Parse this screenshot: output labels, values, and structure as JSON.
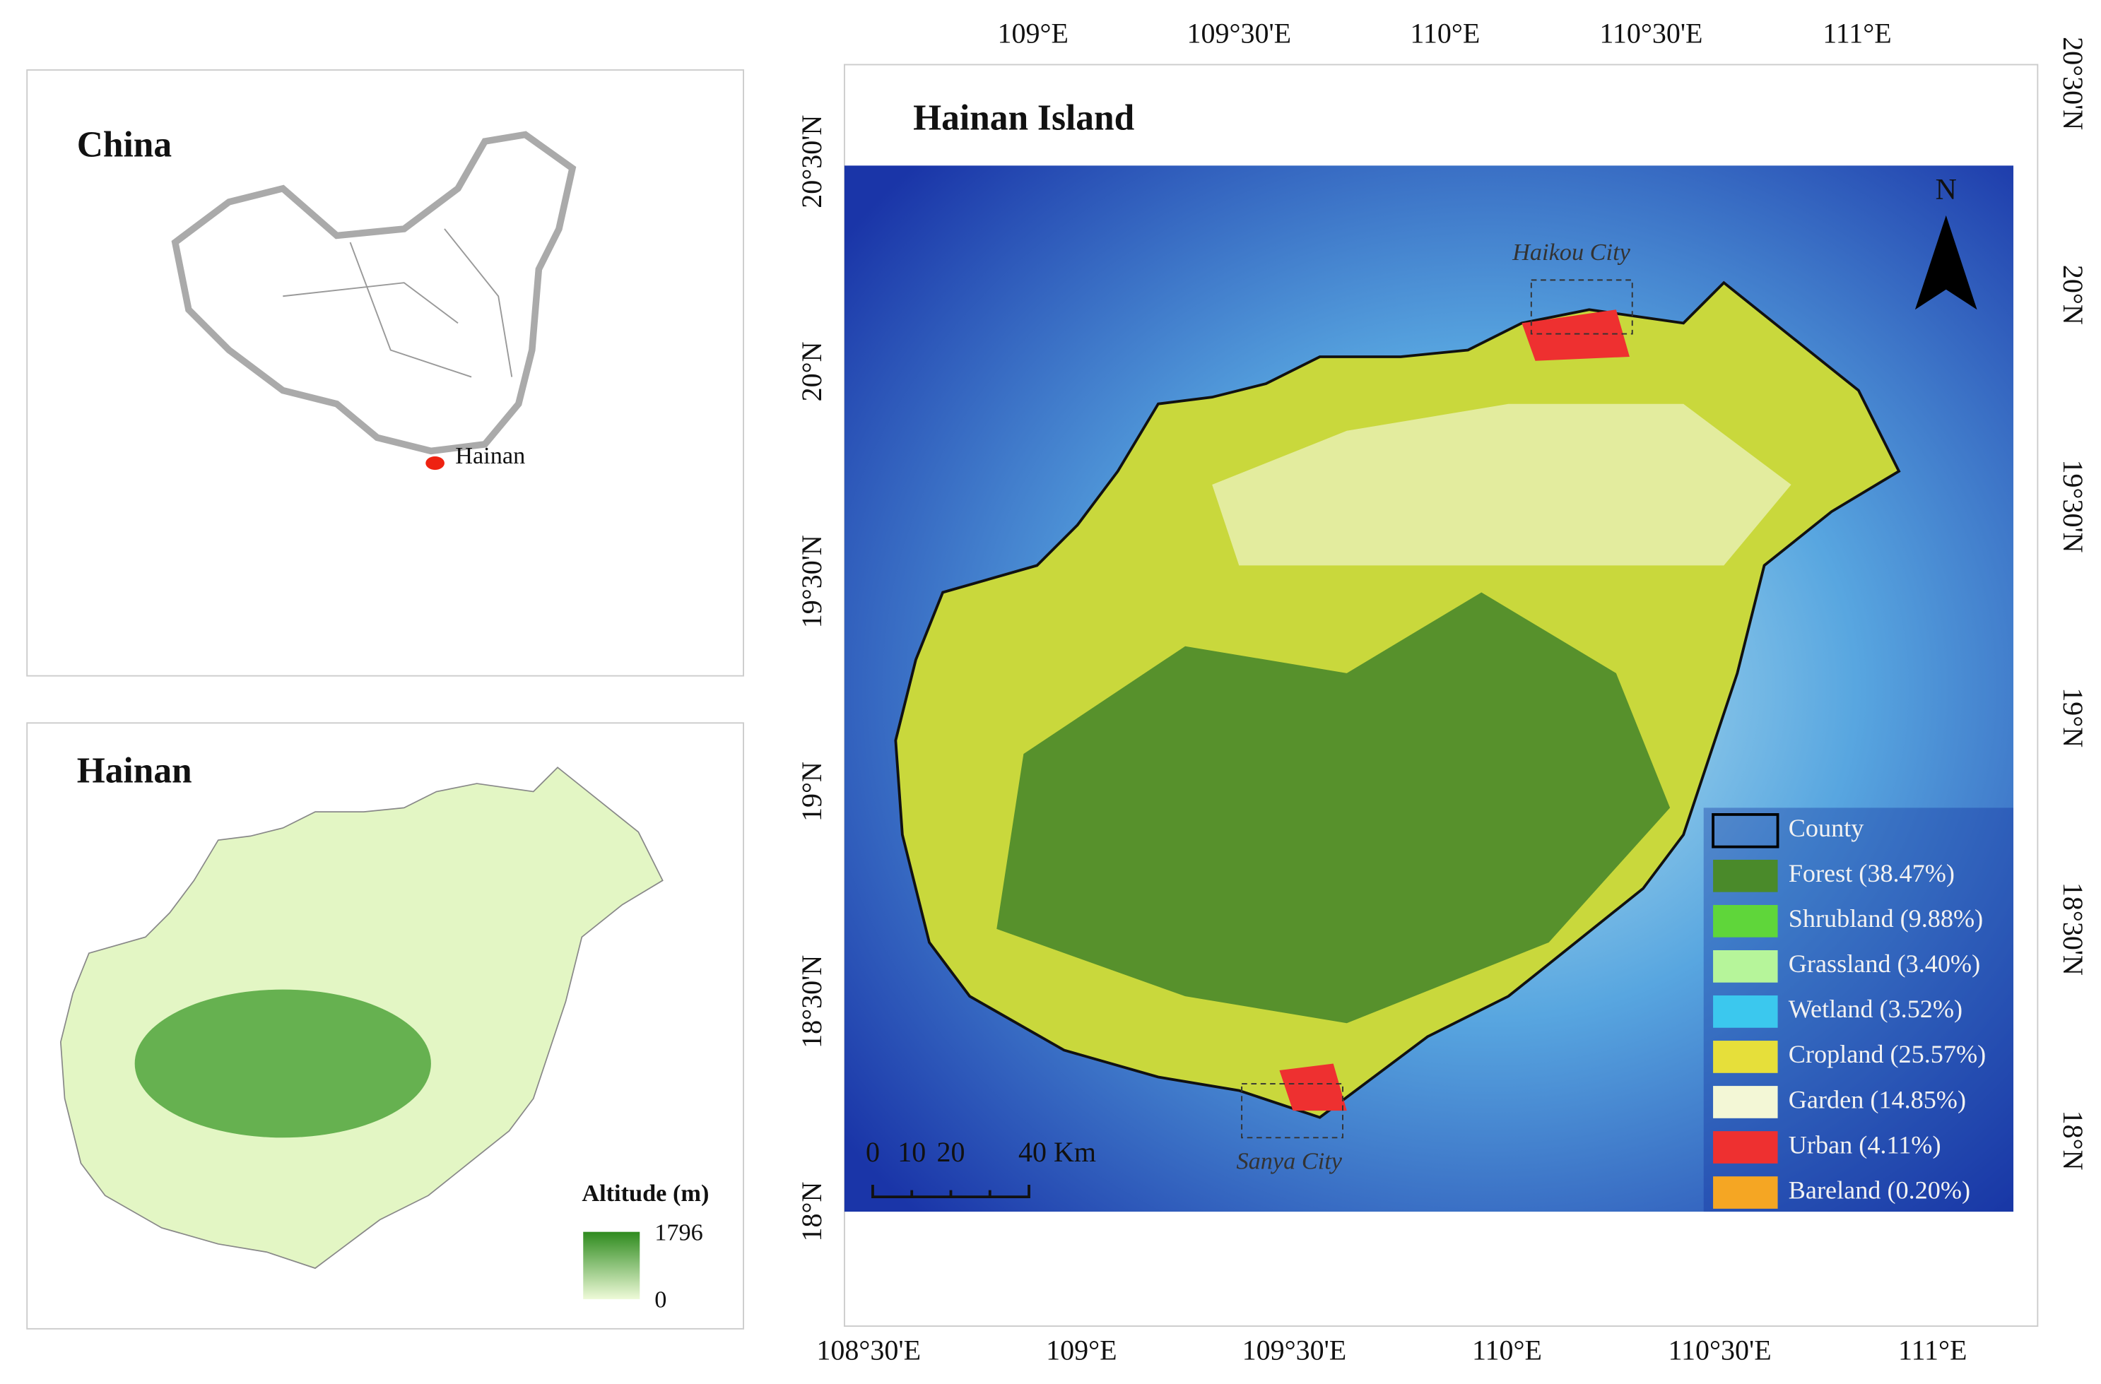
{
  "china_panel": {
    "title": "China",
    "label": "Hainan"
  },
  "altitude_panel": {
    "title": "Hainan",
    "legend_title": "Altitude (m)",
    "max_label": "1796",
    "min_label": "0"
  },
  "main_map": {
    "title": "Hainan Island",
    "north": "N",
    "top_labels": [
      "109°E",
      "109°30'E",
      "110°E",
      "110°30'E",
      "111°E"
    ],
    "bottom_labels": [
      "108°30'E",
      "109°E",
      "109°30'E",
      "110°E",
      "110°30'E",
      "111°E"
    ],
    "left_labels": [
      "20°30'N",
      "20°N",
      "19°30'N",
      "19°N",
      "18°30'N",
      "18°N"
    ],
    "right_labels": [
      "20°30'N",
      "20°N",
      "19°30'N",
      "19°N",
      "18°30'N",
      "18°N"
    ],
    "cities": [
      "Haikou City",
      "Sanya City"
    ],
    "scale_labels": [
      "0",
      "10",
      "20",
      "40 Km"
    ],
    "legend": [
      {
        "label": "County",
        "color": "none"
      },
      {
        "label": "Forest (38.47%)",
        "color": "#4a8a2a"
      },
      {
        "label": "Shrubland (9.88%)",
        "color": "#5fd63a"
      },
      {
        "label": "Grassland (3.40%)",
        "color": "#b6f59a"
      },
      {
        "label": "Wetland (3.52%)",
        "color": "#3bc8ee"
      },
      {
        "label": "Cropland (25.57%)",
        "color": "#e6df3a"
      },
      {
        "label": "Garden (14.85%)",
        "color": "#f3f7d6"
      },
      {
        "label": "Urban (4.11%)",
        "color": "#ee3030"
      },
      {
        "label": "Bareland (0.20%)",
        "color": "#f5a623"
      }
    ]
  }
}
